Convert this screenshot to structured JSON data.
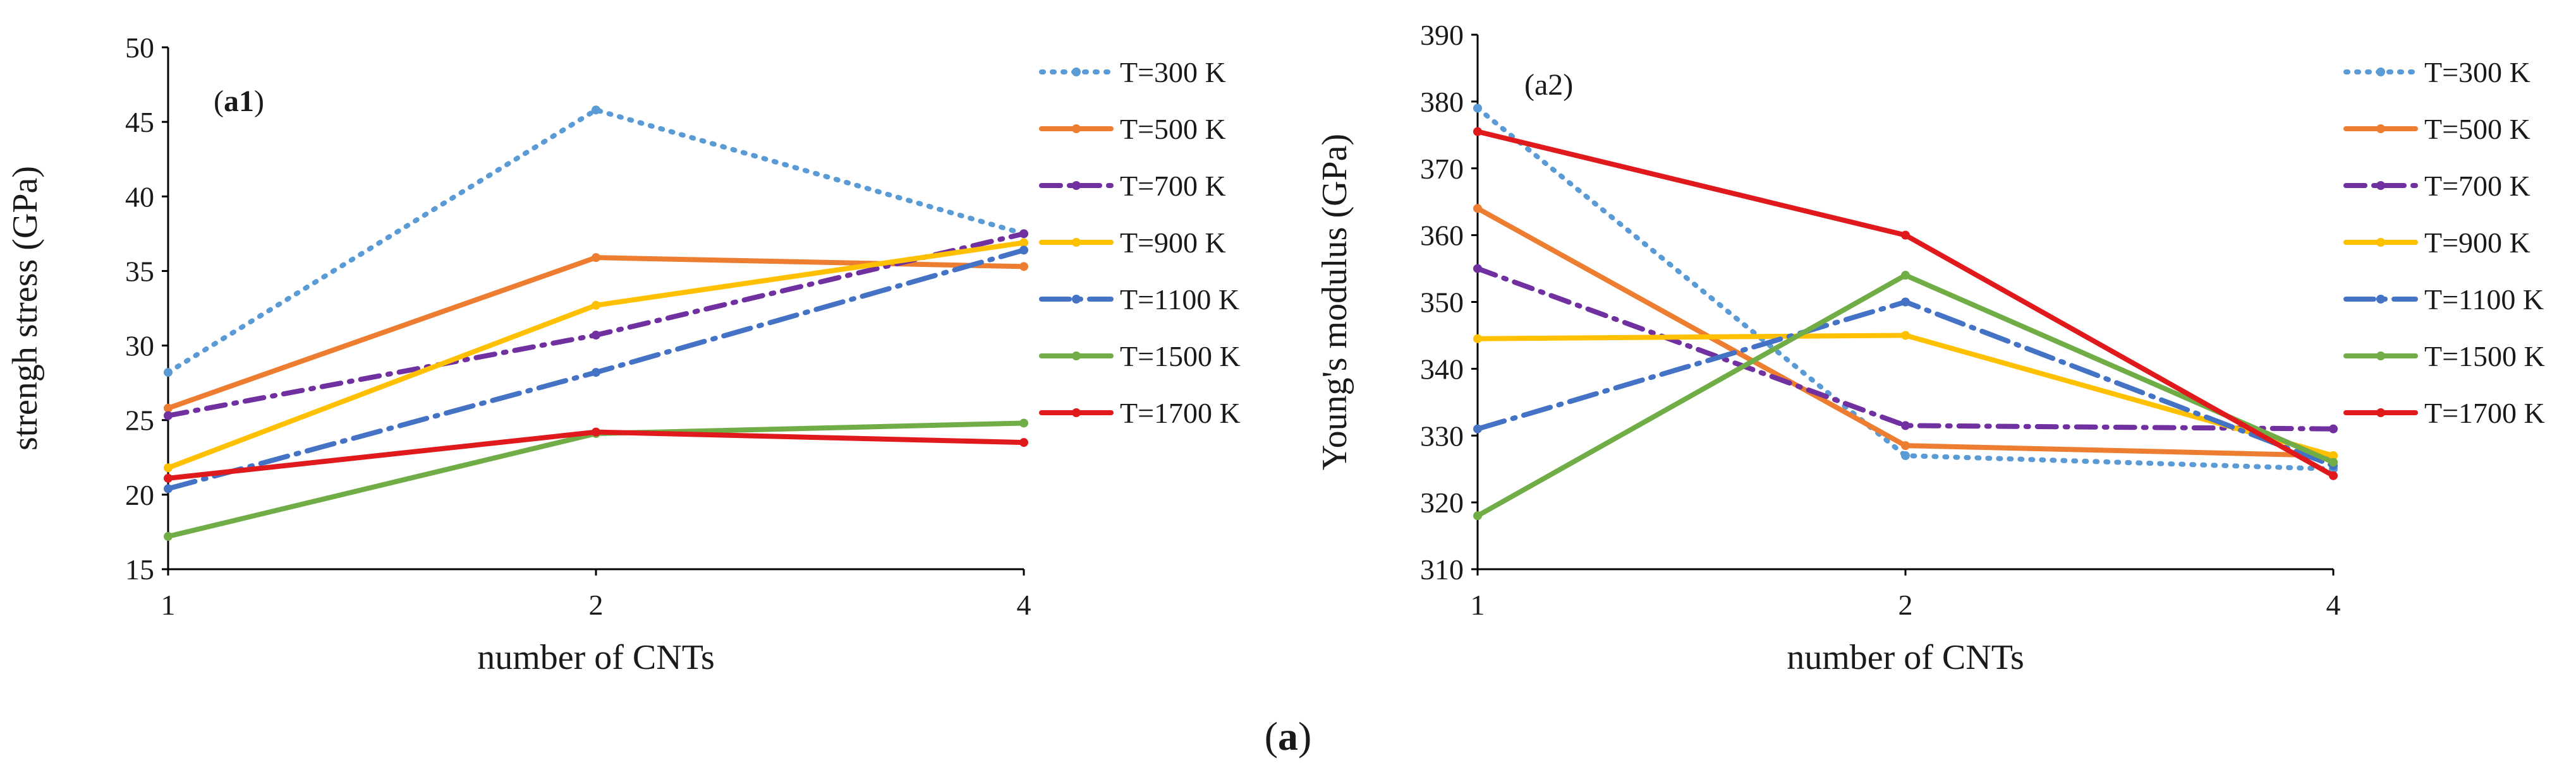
{
  "caption": {
    "open": "(",
    "letter": "a",
    "close": ")"
  },
  "series_styles": [
    {
      "name": "T=300 K",
      "color": "#5b9bd5",
      "dash": "dot"
    },
    {
      "name": "T=500 K",
      "color": "#ed7d31",
      "dash": "solid"
    },
    {
      "name": "T=700 K",
      "color": "#7030a0",
      "dash": "dashdot"
    },
    {
      "name": "T=900 K",
      "color": "#ffc000",
      "dash": "solid"
    },
    {
      "name": "T=1100 K",
      "color": "#4472c4",
      "dash": "longdashdot"
    },
    {
      "name": "T=1500 K",
      "color": "#70ad47",
      "dash": "solid"
    },
    {
      "name": "T=1700 K",
      "color": "#e0191c",
      "dash": "solid"
    }
  ],
  "chart_data": [
    {
      "type": "line",
      "panel_label": {
        "prefix": "(",
        "bold": "a1",
        "suffix": ")"
      },
      "title": "",
      "xlabel": "number of CNTs",
      "ylabel": "strengh stress (GPa)",
      "categories": [
        "1",
        "2",
        "4"
      ],
      "ylim": [
        15,
        50
      ],
      "yticks": [
        15,
        20,
        25,
        30,
        35,
        40,
        45,
        50
      ],
      "grid": false,
      "legend": "right",
      "series": [
        {
          "name": "T=300 K",
          "values": [
            28.2,
            45.8,
            37.5
          ]
        },
        {
          "name": "T=500 K",
          "values": [
            25.8,
            35.9,
            35.3
          ]
        },
        {
          "name": "T=700 K",
          "values": [
            25.3,
            30.7,
            37.5
          ]
        },
        {
          "name": "T=900 K",
          "values": [
            21.8,
            32.7,
            36.9
          ]
        },
        {
          "name": "T=1100 K",
          "values": [
            20.4,
            28.2,
            36.4
          ]
        },
        {
          "name": "T=1500 K",
          "values": [
            17.2,
            24.1,
            24.8
          ]
        },
        {
          "name": "T=1700 K",
          "values": [
            21.1,
            24.2,
            23.5
          ]
        }
      ]
    },
    {
      "type": "line",
      "panel_label": {
        "prefix": "(",
        "bold": "",
        "plain": "a2",
        "suffix": ")"
      },
      "title": "",
      "xlabel": "number of CNTs",
      "ylabel": "Young's modulus (GPa)",
      "categories": [
        "1",
        "2",
        "4"
      ],
      "ylim": [
        310,
        390
      ],
      "yticks": [
        310,
        320,
        330,
        340,
        350,
        360,
        370,
        380,
        390
      ],
      "grid": false,
      "legend": "right",
      "series": [
        {
          "name": "T=300 K",
          "values": [
            379.0,
            327.0,
            325.0
          ]
        },
        {
          "name": "T=500 K",
          "values": [
            364.0,
            328.5,
            327.0
          ]
        },
        {
          "name": "T=700 K",
          "values": [
            355.0,
            331.5,
            331.0
          ]
        },
        {
          "name": "T=900 K",
          "values": [
            344.5,
            345.0,
            327.0
          ]
        },
        {
          "name": "T=1100 K",
          "values": [
            331.0,
            350.0,
            325.5
          ]
        },
        {
          "name": "T=1500 K",
          "values": [
            318.0,
            354.0,
            326.0
          ]
        },
        {
          "name": "T=1700 K",
          "values": [
            375.5,
            360.0,
            324.0
          ]
        }
      ]
    }
  ]
}
